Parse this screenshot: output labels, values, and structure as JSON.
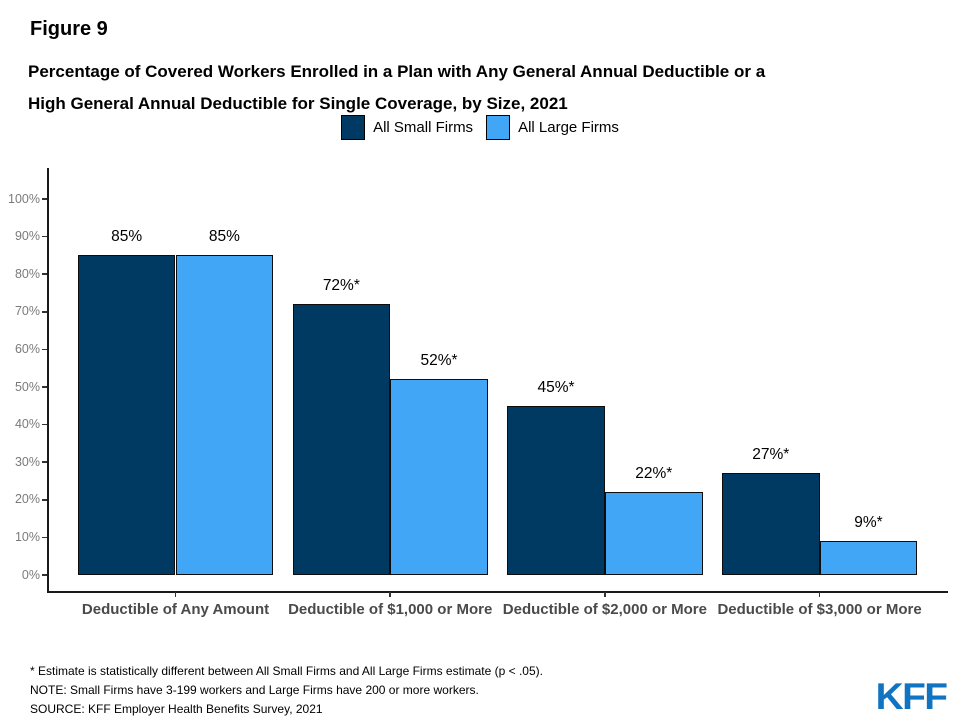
{
  "header": {
    "figure_label": "Figure 9",
    "title_line1": "Percentage of Covered Workers Enrolled in a Plan with Any General Annual Deductible or a",
    "title_line2": "High General Annual Deductible for Single Coverage, by Size, 2021"
  },
  "legend": {
    "items": [
      {
        "label": "All Small Firms",
        "color": "#003A63"
      },
      {
        "label": "All Large Firms",
        "color": "#41A6F6"
      }
    ]
  },
  "chart_data": {
    "type": "bar",
    "title": "Percentage of Covered Workers Enrolled in a Plan with Any General Annual Deductible or a High General Annual Deductible for Single Coverage, by Size, 2021",
    "categories": [
      "Deductible of Any Amount",
      "Deductible of $1,000 or More",
      "Deductible of $2,000 or More",
      "Deductible of $3,000 or More"
    ],
    "series": [
      {
        "name": "All Small Firms",
        "color": "#003A63",
        "values": [
          85,
          72,
          45,
          27
        ],
        "labels": [
          "85%",
          "72%*",
          "45%*",
          "27%*"
        ]
      },
      {
        "name": "All Large Firms",
        "color": "#41A6F6",
        "values": [
          85,
          52,
          22,
          9
        ],
        "labels": [
          "85%",
          "52%*",
          "22%*",
          "9%*"
        ]
      }
    ],
    "xlabel": "",
    "ylabel": "",
    "ylim": [
      0,
      100
    ],
    "ytick_labels": [
      "0%",
      "10%",
      "20%",
      "30%",
      "40%",
      "50%",
      "60%",
      "70%",
      "80%",
      "90%",
      "100%"
    ],
    "grid": false,
    "legend_position": "top"
  },
  "footnotes": {
    "significance": "* Estimate is statistically different between All Small Firms and All Large Firms estimate (p < .05).",
    "note": "NOTE: Small Firms have 3-199 workers and Large Firms have 200 or more workers.",
    "source": "SOURCE: KFF Employer Health Benefits Survey, 2021"
  },
  "logo": {
    "text": "KFF",
    "color": "#1174C2"
  }
}
